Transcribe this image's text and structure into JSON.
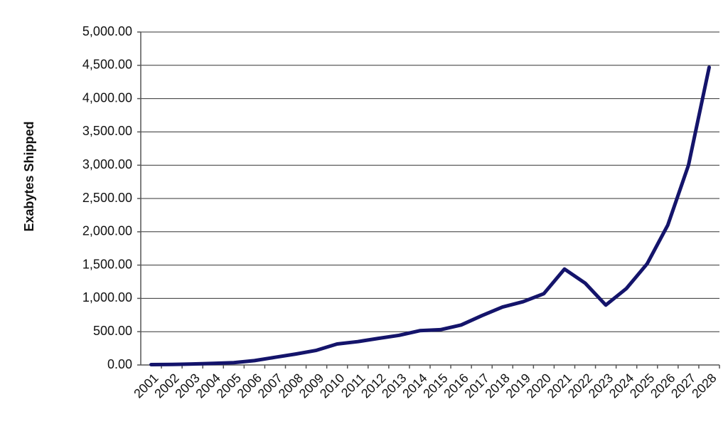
{
  "chart_data": {
    "type": "line",
    "y_label": "Exabytes Shipped",
    "categories": [
      "2001",
      "2002",
      "2003",
      "2004",
      "2005",
      "2006",
      "2007",
      "2008",
      "2009",
      "2010",
      "2011",
      "2012",
      "2013",
      "2014",
      "2015",
      "2016",
      "2017",
      "2018",
      "2019",
      "2020",
      "2021",
      "2022",
      "2023",
      "2024",
      "2025",
      "2026",
      "2027",
      "2028"
    ],
    "values": [
      5,
      8,
      15,
      25,
      35,
      65,
      115,
      165,
      220,
      315,
      350,
      400,
      445,
      515,
      530,
      600,
      740,
      870,
      950,
      1070,
      1440,
      1230,
      900,
      1150,
      1520,
      2100,
      3000,
      4470
    ],
    "color": "#14146b",
    "ylim": [
      0,
      5000
    ],
    "yticks": [
      {
        "value": 0,
        "label": "0.00"
      },
      {
        "value": 500,
        "label": "500.00"
      },
      {
        "value": 1000,
        "label": "1,000.00"
      },
      {
        "value": 1500,
        "label": "1,500.00"
      },
      {
        "value": 2000,
        "label": "2,000.00"
      },
      {
        "value": 2500,
        "label": "2,500.00"
      },
      {
        "value": 3000,
        "label": "3,000.00"
      },
      {
        "value": 3500,
        "label": "3,500.00"
      },
      {
        "value": 4000,
        "label": "4,000.00"
      },
      {
        "value": 4500,
        "label": "4,500.00"
      },
      {
        "value": 5000,
        "label": "5,000.00"
      }
    ],
    "grid": true
  }
}
